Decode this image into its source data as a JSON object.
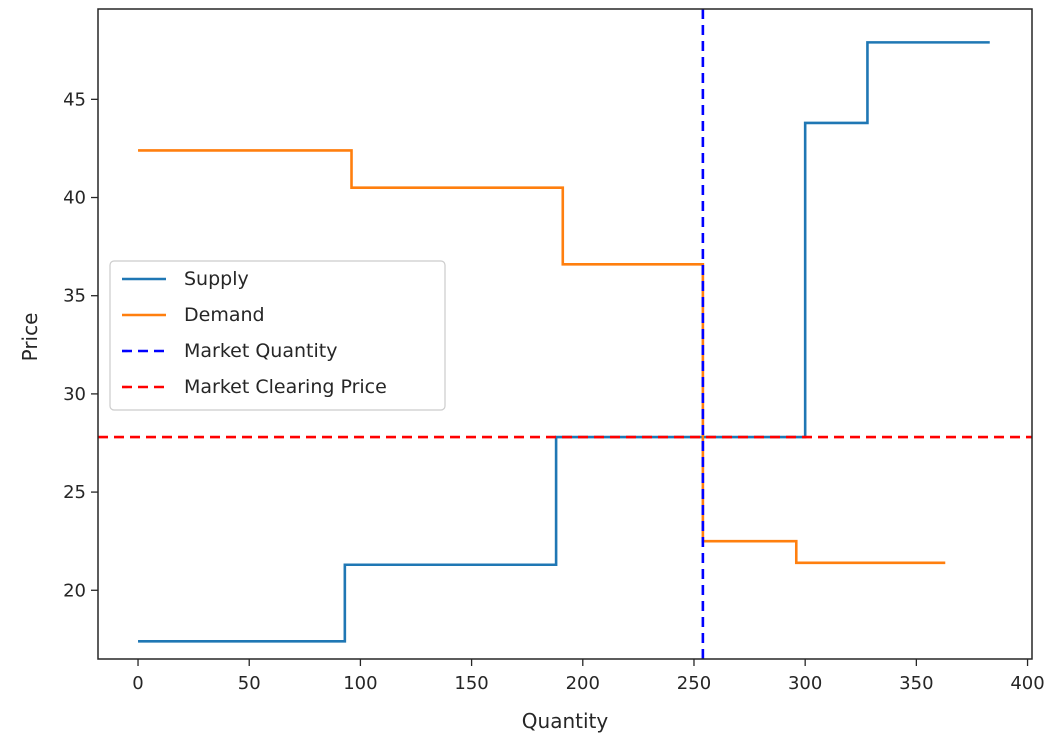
{
  "chart_data": {
    "type": "line",
    "title": "",
    "xlabel": "Quantity",
    "ylabel": "Price",
    "xlim": [
      -18,
      402
    ],
    "ylim": [
      16.5,
      49.6
    ],
    "x_ticks": [
      0,
      50,
      100,
      150,
      200,
      250,
      300,
      350,
      400
    ],
    "y_ticks": [
      20,
      25,
      30,
      35,
      40,
      45
    ],
    "grid": false,
    "legend_position": "center-left",
    "series": [
      {
        "name": "Supply",
        "style": "step",
        "color": "#1f77b4",
        "dash": "solid",
        "x": [
          0,
          93,
          93,
          188,
          188,
          300,
          300,
          328,
          328,
          383
        ],
        "y": [
          17.4,
          17.4,
          21.3,
          21.3,
          27.8,
          27.8,
          43.8,
          43.8,
          47.9,
          47.9
        ]
      },
      {
        "name": "Demand",
        "style": "step",
        "color": "#ff7f0e",
        "dash": "solid",
        "x": [
          0,
          96,
          96,
          191,
          191,
          254,
          254,
          296,
          296,
          363
        ],
        "y": [
          42.4,
          42.4,
          40.5,
          40.5,
          36.6,
          36.6,
          22.5,
          22.5,
          21.4,
          21.4
        ]
      },
      {
        "name": "Market Quantity",
        "style": "vline",
        "color": "#0000ff",
        "dash": "dashed",
        "x_value": 254
      },
      {
        "name": "Market Clearing Price",
        "style": "hline",
        "color": "#ff0000",
        "dash": "dashed",
        "y_value": 27.8
      }
    ]
  }
}
